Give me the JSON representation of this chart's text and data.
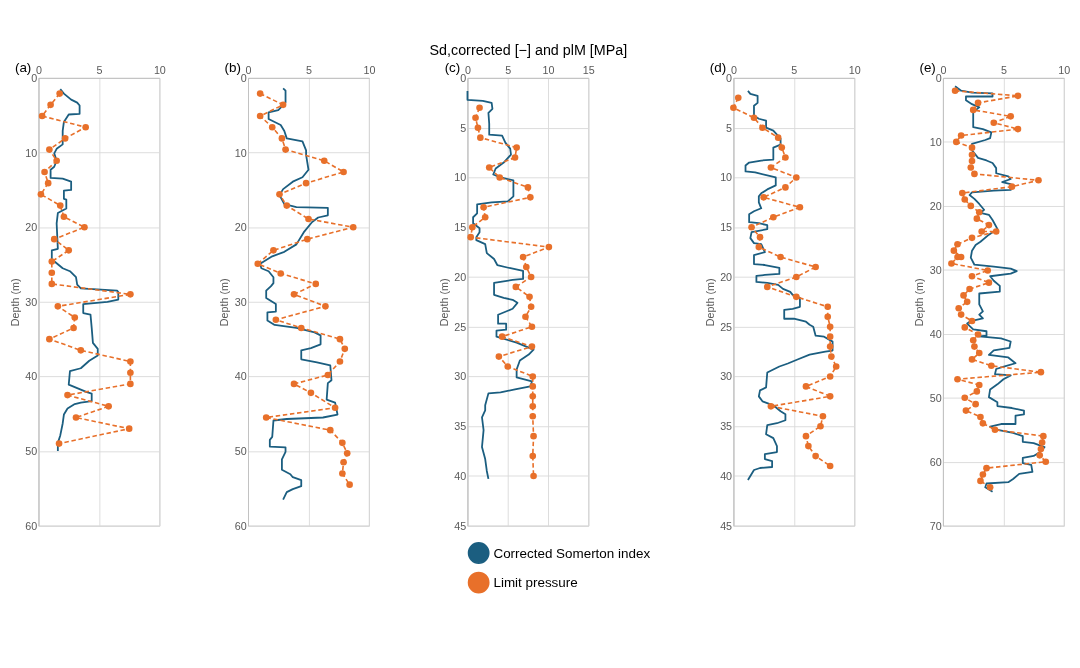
{
  "chart_data": [
    {
      "type": "line",
      "title": "(a)",
      "ylabel": "Depth (m)",
      "xlim": [
        0,
        10
      ],
      "xticks": [
        0,
        5,
        10
      ],
      "ylim": [
        60,
        0
      ],
      "yticks": [
        0,
        10,
        20,
        30,
        40,
        50,
        60
      ],
      "grid": true,
      "series": [
        {
          "color": "#1b5e80",
          "line_style": "solid",
          "marker": "none",
          "x": [
            1.8,
            2.1,
            2.7,
            3.2,
            3.4,
            3.4,
            2.5,
            2.1,
            2.0,
            2.0,
            1.5,
            1.3,
            1.5,
            1.3,
            1.0,
            1.0,
            2.0,
            2.7,
            2.7,
            2.1,
            2.1,
            2.3,
            2.3,
            1.6,
            1.5,
            1.6,
            1.1,
            1.1,
            1.4,
            2.0,
            2.6,
            3.1,
            3.2,
            3.5,
            6.5,
            6.6,
            6.6,
            5.7,
            3.7,
            3.7,
            4.3,
            4.4,
            4.5,
            4.9,
            4.9,
            4.2,
            3.5,
            2.6,
            2.5,
            3.1,
            4.0,
            4.4,
            4.4,
            3.5,
            3.0,
            2.4,
            2.1,
            2.0,
            1.8,
            1.6,
            1.6
          ],
          "values": [
            1.5,
            2.1,
            2.9,
            3.3,
            3.7,
            4.8,
            4.9,
            5.9,
            7.1,
            8.9,
            9.5,
            10.1,
            11.1,
            11.9,
            12.3,
            13.4,
            13.5,
            13.9,
            15.0,
            15.1,
            16.2,
            16.3,
            17.5,
            18.1,
            19.5,
            22.9,
            23.1,
            24.3,
            24.7,
            25.5,
            25.9,
            26.7,
            27.7,
            28.2,
            28.5,
            28.7,
            29.7,
            30.0,
            30.3,
            31.5,
            31.7,
            33.5,
            35.5,
            36.3,
            37.2,
            37.9,
            38.9,
            39.3,
            41.1,
            41.5,
            42.1,
            42.3,
            43.3,
            43.5,
            43.7,
            44.3,
            45.1,
            46.3,
            47.9,
            48.9,
            50.0
          ]
        },
        {
          "color": "#e8702a",
          "line_style": "dashed",
          "marker": "circle",
          "x": [
            1.75,
            1.0,
            0.3,
            3.9,
            2.2,
            0.9,
            1.5,
            0.5,
            0.8,
            0.2,
            1.8,
            2.1,
            3.8,
            1.3,
            2.5,
            1.1,
            1.1,
            1.1,
            7.6,
            1.6,
            3.0,
            2.9,
            0.9,
            3.5,
            7.6,
            7.6,
            7.6,
            2.4,
            5.8,
            3.1,
            7.5,
            1.7
          ],
          "values": [
            2.1,
            3.6,
            5.1,
            6.6,
            8.1,
            9.6,
            11.1,
            12.6,
            14.1,
            15.6,
            17.1,
            18.6,
            20.0,
            21.6,
            23.1,
            24.6,
            26.1,
            27.6,
            29.0,
            30.6,
            32.1,
            33.5,
            35.0,
            36.5,
            38.0,
            39.5,
            41.0,
            42.5,
            44.0,
            45.5,
            47.0,
            49.0
          ]
        }
      ]
    },
    {
      "type": "line",
      "title": "(b)",
      "ylabel": "Depth (m)",
      "xlim": [
        0,
        10
      ],
      "xticks": [
        0,
        5,
        10
      ],
      "ylim": [
        60,
        0
      ],
      "yticks": [
        0,
        10,
        20,
        30,
        40,
        50,
        60
      ],
      "grid": true,
      "series": [
        {
          "color": "#1b5e80",
          "line_style": "solid",
          "marker": "none",
          "x": [
            2.9,
            3.1,
            3.1,
            2.5,
            1.7,
            1.7,
            2.7,
            3.0,
            3.2,
            4.5,
            4.8,
            4.8,
            5.0,
            4.5,
            3.7,
            2.9,
            2.6,
            3.0,
            4.0,
            6.6,
            6.6,
            5.8,
            5.3,
            4.6,
            4.0,
            3.0,
            2.0,
            1.0,
            1.1,
            1.7,
            2.1,
            2.1,
            1.9,
            1.5,
            1.5,
            2.3,
            2.3,
            1.6,
            1.6,
            2.2,
            4.0,
            5.5,
            6.0,
            6.0,
            5.2,
            4.4,
            4.4,
            5.7,
            6.8,
            6.9,
            6.6,
            6.5,
            7.2,
            7.4,
            6.2,
            3.2,
            2.1,
            2.0,
            1.8,
            1.8,
            3.1,
            3.1,
            2.8,
            2.8,
            3.5,
            3.7,
            4.4,
            4.4,
            3.7,
            3.2,
            2.9
          ],
          "values": [
            1.4,
            1.7,
            3.3,
            4.3,
            4.6,
            5.5,
            6.3,
            7.1,
            8.1,
            8.5,
            9.7,
            10.3,
            12.3,
            13.3,
            13.9,
            14.9,
            15.7,
            16.9,
            17.3,
            17.4,
            18.4,
            18.7,
            19.3,
            20.7,
            22.3,
            23.3,
            23.9,
            24.9,
            25.5,
            25.9,
            26.7,
            27.5,
            27.9,
            28.5,
            29.5,
            30.3,
            31.3,
            31.4,
            32.5,
            33.1,
            33.5,
            34.1,
            34.5,
            35.7,
            36.2,
            36.5,
            37.7,
            38.1,
            38.5,
            40.5,
            40.9,
            43.1,
            43.5,
            45.1,
            45.5,
            45.7,
            45.9,
            48.1,
            48.5,
            49.4,
            49.5,
            50.1,
            51.1,
            52.5,
            53.1,
            53.5,
            53.9,
            54.7,
            55.1,
            55.5,
            56.5
          ]
        },
        {
          "color": "#e8702a",
          "line_style": "dashed",
          "marker": "circle",
          "x": [
            1.0,
            2.9,
            1.0,
            2.0,
            2.8,
            3.1,
            6.3,
            7.9,
            4.8,
            2.6,
            3.2,
            5.0,
            8.7,
            4.9,
            2.1,
            0.8,
            2.7,
            5.6,
            3.8,
            6.4,
            2.3,
            4.4,
            7.6,
            8.0,
            7.6,
            6.6,
            3.8,
            5.2,
            7.2,
            1.5,
            6.8,
            7.8,
            8.2,
            7.9,
            7.8,
            8.4
          ],
          "values": [
            2.1,
            3.6,
            5.1,
            6.6,
            8.1,
            9.6,
            11.1,
            12.6,
            14.1,
            15.6,
            17.1,
            18.9,
            20.0,
            21.6,
            23.1,
            24.9,
            26.2,
            27.6,
            29.0,
            30.6,
            32.4,
            33.5,
            35.0,
            36.3,
            38.0,
            39.8,
            41.0,
            42.2,
            44.2,
            45.5,
            47.2,
            48.9,
            50.3,
            51.5,
            53.0,
            54.5
          ]
        }
      ]
    },
    {
      "type": "line",
      "title": "(c)",
      "xlabel": "Sd,corrected [−] and plM [MPa]",
      "ylabel": "Depth (m)",
      "xlim": [
        0,
        15
      ],
      "xticks": [
        0,
        5,
        10,
        15
      ],
      "ylim": [
        45,
        0
      ],
      "yticks": [
        0,
        5,
        10,
        15,
        20,
        25,
        30,
        35,
        40,
        45
      ],
      "grid": true,
      "legend": "bottom",
      "series": [
        {
          "name": "Corrected Somerton index",
          "color": "#1b5e80",
          "line_style": "solid",
          "marker": "none",
          "x": [
            0,
            0,
            1.9,
            3.0,
            3.1,
            2.6,
            2.7,
            2.7,
            4.3,
            4.7,
            5.3,
            5.4,
            4.5,
            3.5,
            3.2,
            4.1,
            5.7,
            5.7,
            5.0,
            3.0,
            1.2,
            1.2,
            0.7,
            0.7,
            1.5,
            1.5,
            1.1,
            1.1,
            2.2,
            2.4,
            3.3,
            3.7,
            5.2,
            6.9,
            6.9,
            5.6,
            3.3,
            3.3,
            4.5,
            5.6,
            6.2,
            5.6,
            3.8,
            3.8,
            4.8,
            4.8,
            3.6,
            3.6,
            6.1,
            8.2,
            7.6,
            6.5,
            6.1,
            6.1,
            8.0,
            7.8,
            5.9,
            4.1,
            2.6,
            2.2,
            2.2,
            1.8,
            2.0,
            1.8,
            2.2,
            2.4,
            2.6
          ],
          "values": [
            1.3,
            2.2,
            2.3,
            2.5,
            3.1,
            3.5,
            4.6,
            5.7,
            5.8,
            6.5,
            7.1,
            7.7,
            8.5,
            9.1,
            9.7,
            10.0,
            10.3,
            11.9,
            12.4,
            12.5,
            12.7,
            13.6,
            14.0,
            14.6,
            15.1,
            15.5,
            16.0,
            16.3,
            16.7,
            17.6,
            18.2,
            18.8,
            19.1,
            19.4,
            20.2,
            20.3,
            20.6,
            21.8,
            22.1,
            22.3,
            22.6,
            23.2,
            23.8,
            24.7,
            24.7,
            25.3,
            25.4,
            26.0,
            26.6,
            27.3,
            27.8,
            28.4,
            29.3,
            30.1,
            30.5,
            31.0,
            31.3,
            31.6,
            31.7,
            32.9,
            33.4,
            34.1,
            35.4,
            37.1,
            38.3,
            39.5,
            40.3
          ]
        },
        {
          "name": "Limit pressure",
          "color": "#e8702a",
          "line_style": "dashed",
          "marker": "circle",
          "x": [
            1.5,
            1.0,
            1.3,
            1.6,
            6.1,
            5.9,
            2.7,
            4.0,
            7.5,
            7.8,
            2.0,
            2.2,
            0.6,
            0.4,
            10.1,
            6.9,
            7.3,
            7.9,
            6.0,
            7.7,
            7.9,
            7.2,
            8.0,
            4.3,
            8.0,
            3.9,
            5.0,
            8.1,
            8.1,
            8.1,
            8.1,
            8.1,
            8.2,
            8.1,
            8.2
          ],
          "values": [
            3.0,
            4.0,
            5.0,
            6.0,
            7.0,
            8.0,
            9.0,
            10.0,
            11.0,
            12.0,
            13.0,
            14.0,
            15.0,
            16.0,
            17.0,
            18.0,
            19.0,
            20.0,
            21.0,
            22.0,
            23.0,
            24.0,
            25.0,
            26.0,
            27.0,
            28.0,
            29.0,
            30.0,
            31.0,
            32.0,
            33.0,
            34.0,
            36.0,
            38.0,
            40.0
          ]
        }
      ]
    },
    {
      "type": "line",
      "title": "(d)",
      "ylabel": "Depth (m)",
      "xlim": [
        0,
        10
      ],
      "xticks": [
        0,
        5,
        10
      ],
      "ylim": [
        45,
        0
      ],
      "yticks": [
        0,
        5,
        10,
        15,
        20,
        25,
        30,
        35,
        40,
        45
      ],
      "grid": true,
      "series": [
        {
          "color": "#1b5e80",
          "line_style": "solid",
          "marker": "none",
          "x": [
            1.2,
            1.4,
            2.0,
            2.0,
            1.7,
            1.7,
            2.1,
            2.7,
            2.7,
            3.3,
            3.9,
            3.9,
            3.3,
            3.3,
            2.3,
            1.3,
            1.0,
            1.0,
            1.8,
            2.8,
            3.5,
            3.5,
            2.8,
            2.3,
            2.1,
            2.1,
            2.3,
            1.7,
            1.3,
            1.3,
            2.1,
            2.8,
            2.8,
            1.5,
            1.4,
            1.7,
            2.3,
            2.6,
            1.7,
            1.7,
            2.6,
            3.8,
            3.8,
            2.6,
            1.9,
            1.9,
            2.8,
            3.7,
            4.1,
            4.7,
            4.9,
            5.5,
            5.5,
            4.9,
            4.2,
            4.2,
            5.0,
            6.0,
            6.3,
            6.6,
            6.8,
            7.5,
            8.2,
            8.2,
            7.6,
            6.3,
            5.3,
            4.5,
            3.8,
            3.3,
            2.8,
            2.7,
            2.2,
            2.1,
            2.4,
            3.3,
            3.9,
            4.3,
            4.3,
            3.6,
            2.8,
            2.7,
            3.3,
            3.6,
            3.6,
            2.6,
            2.6,
            3.2,
            3.2,
            2.2,
            1.7,
            1.5,
            1.2
          ],
          "values": [
            1.3,
            1.6,
            1.8,
            2.5,
            2.8,
            3.8,
            4.1,
            4.3,
            5.0,
            5.3,
            6.1,
            6.7,
            7.0,
            8.2,
            8.3,
            8.5,
            8.8,
            9.4,
            9.5,
            9.8,
            10.0,
            10.8,
            11.2,
            11.6,
            11.9,
            12.5,
            13.1,
            13.4,
            13.7,
            14.5,
            14.6,
            14.8,
            15.2,
            15.5,
            16.1,
            16.6,
            16.7,
            17.5,
            17.8,
            18.7,
            18.8,
            19.1,
            19.7,
            19.8,
            19.9,
            20.5,
            20.6,
            20.8,
            21.2,
            21.5,
            21.8,
            22.1,
            23.0,
            23.2,
            23.3,
            24.2,
            24.2,
            24.5,
            24.8,
            25.0,
            25.9,
            26.0,
            26.5,
            27.4,
            27.5,
            27.8,
            28.3,
            28.7,
            29.0,
            29.3,
            29.6,
            31.1,
            31.4,
            32.0,
            32.5,
            32.9,
            33.5,
            33.8,
            34.4,
            34.7,
            34.9,
            35.8,
            36.2,
            37.0,
            37.6,
            37.8,
            38.3,
            38.5,
            39.1,
            39.2,
            39.4,
            39.8,
            40.4
          ]
        },
        {
          "color": "#e8702a",
          "line_style": "dashed",
          "marker": "circle",
          "x": [
            0.4,
            0.0,
            1.7,
            2.4,
            3.7,
            4.0,
            4.3,
            3.1,
            5.2,
            4.3,
            2.5,
            5.5,
            3.3,
            1.5,
            2.2,
            2.1,
            3.9,
            6.8,
            5.2,
            2.8,
            5.2,
            7.8,
            7.8,
            8.0,
            8.0,
            8.0,
            8.1,
            8.5,
            8.0,
            6.0,
            8.0,
            3.1,
            7.4,
            7.2,
            6.0,
            6.2,
            6.8,
            8.0
          ],
          "values": [
            2.0,
            3.0,
            4.0,
            5.0,
            6.0,
            7.0,
            8.0,
            9.0,
            10.0,
            11.0,
            12.0,
            13.0,
            14.0,
            15.0,
            16.0,
            17.0,
            18.0,
            19.0,
            20.0,
            21.0,
            22.0,
            23.0,
            24.0,
            25.0,
            26.0,
            27.0,
            28.0,
            29.0,
            30.0,
            31.0,
            32.0,
            33.0,
            34.0,
            35.0,
            36.0,
            37.0,
            38.0,
            39.0
          ]
        }
      ]
    },
    {
      "type": "line",
      "title": "(e)",
      "ylabel": "Depth (m)",
      "xlim": [
        0,
        10
      ],
      "xticks": [
        0,
        5,
        10
      ],
      "ylim": [
        70,
        0
      ],
      "yticks": [
        0,
        10,
        20,
        30,
        40,
        50,
        60,
        70
      ],
      "grid": true,
      "series": [
        {
          "color": "#1b5e80",
          "line_style": "solid",
          "marker": "none",
          "x": [
            1.0,
            1.5,
            2.4,
            4.1,
            4.1,
            1.9,
            1.9,
            2.4,
            3.0,
            2.5,
            2.5,
            3.3,
            4.0,
            3.9,
            3.5,
            2.4,
            2.4,
            2.9,
            3.6,
            4.1,
            4.4,
            4.4,
            5.4,
            5.6,
            4.9,
            5.6,
            5.6,
            4.2,
            2.4,
            2.2,
            2.6,
            3.0,
            3.4,
            3.1,
            3.8,
            4.1,
            4.5,
            3.8,
            3.1,
            2.7,
            2.4,
            2.3,
            2.6,
            4.2,
            5.6,
            6.1,
            5.6,
            3.9,
            4.2,
            4.7,
            4.7,
            3.0,
            3.0,
            3.3,
            3.0,
            3.3,
            2.3,
            2.0,
            2.5,
            3.6,
            3.6,
            3.0,
            4.8,
            5.6,
            5.5,
            4.2,
            3.8,
            5.4,
            6.0,
            5.1,
            4.4,
            4.3,
            5.6,
            5.0,
            4.5,
            3.9,
            3.8,
            4.5,
            4.5,
            5.7,
            6.7,
            6.7,
            6.0,
            6.0,
            4.8,
            3.9,
            4.2,
            5.8,
            6.6,
            6.6,
            7.5,
            8.4,
            8.0,
            7.5,
            6.6,
            6.6,
            7.3,
            7.4,
            6.3,
            5.8,
            5.4,
            3.6,
            3.5,
            4.1
          ],
          "values": [
            1.3,
            2.0,
            2.3,
            2.4,
            2.9,
            2.9,
            3.5,
            4.1,
            4.6,
            5.3,
            7.7,
            8.0,
            8.5,
            9.4,
            9.7,
            10.3,
            11.3,
            12.5,
            12.9,
            13.3,
            14.1,
            14.9,
            15.4,
            15.8,
            16.3,
            16.6,
            17.5,
            17.6,
            17.9,
            18.3,
            18.9,
            19.7,
            20.6,
            21.1,
            21.4,
            22.2,
            23.6,
            24.5,
            25.6,
            26.1,
            27.0,
            28.1,
            29.2,
            29.5,
            29.8,
            30.2,
            30.6,
            31.0,
            31.7,
            32.5,
            33.4,
            33.7,
            35.4,
            36.5,
            37.0,
            37.6,
            38.0,
            38.4,
            39.3,
            39.6,
            40.3,
            40.4,
            40.7,
            41.2,
            42.2,
            42.6,
            43.3,
            43.7,
            44.6,
            45.1,
            45.5,
            46.3,
            46.5,
            47.1,
            47.9,
            48.7,
            49.9,
            50.7,
            51.3,
            51.6,
            52.0,
            52.6,
            52.8,
            54.1,
            54.1,
            54.5,
            54.9,
            55.5,
            56.0,
            56.9,
            57.1,
            57.7,
            58.5,
            59.1,
            59.4,
            60.2,
            60.5,
            61.6,
            61.9,
            62.7,
            63.2,
            63.4,
            64.0,
            64.7
          ]
        },
        {
          "color": "#e8702a",
          "line_style": "dashed",
          "marker": "circle",
          "x": [
            1.0,
            6.2,
            2.9,
            2.5,
            5.6,
            4.2,
            6.2,
            1.5,
            1.1,
            2.4,
            2.4,
            2.4,
            2.3,
            2.6,
            7.9,
            5.7,
            1.6,
            1.8,
            2.3,
            3.0,
            2.8,
            3.8,
            3.2,
            4.4,
            2.4,
            1.2,
            0.9,
            1.5,
            1.2,
            0.7,
            3.7,
            2.4,
            3.8,
            2.2,
            1.7,
            2.0,
            1.3,
            1.5,
            2.4,
            1.8,
            2.9,
            2.5,
            2.6,
            3.0,
            2.4,
            4.0,
            8.1,
            1.2,
            3.0,
            2.8,
            1.8,
            2.7,
            1.9,
            3.1,
            3.3,
            4.3,
            8.3,
            8.2,
            8.1,
            8.0,
            8.5,
            3.6,
            3.3,
            3.1,
            3.9
          ],
          "values": [
            2.0,
            2.8,
            3.9,
            5.0,
            6.0,
            7.0,
            8.0,
            9.0,
            10.0,
            10.9,
            12.0,
            13.0,
            14.0,
            15.0,
            16.0,
            17.0,
            18.0,
            19.0,
            20.0,
            21.0,
            22.0,
            23.0,
            24.0,
            24.0,
            25.0,
            26.0,
            27.0,
            28.0,
            28.0,
            29.0,
            30.1,
            31.0,
            32.0,
            33.0,
            34.0,
            35.0,
            36.0,
            37.0,
            38.0,
            39.0,
            40.1,
            41.0,
            42.0,
            43.0,
            44.0,
            45.0,
            46.0,
            47.1,
            48.0,
            49.0,
            50.0,
            51.0,
            52.0,
            53.0,
            54.0,
            55.0,
            56.0,
            57.0,
            58.0,
            59.0,
            60.0,
            61.0,
            62.0,
            63.0,
            64.0
          ]
        }
      ]
    }
  ]
}
